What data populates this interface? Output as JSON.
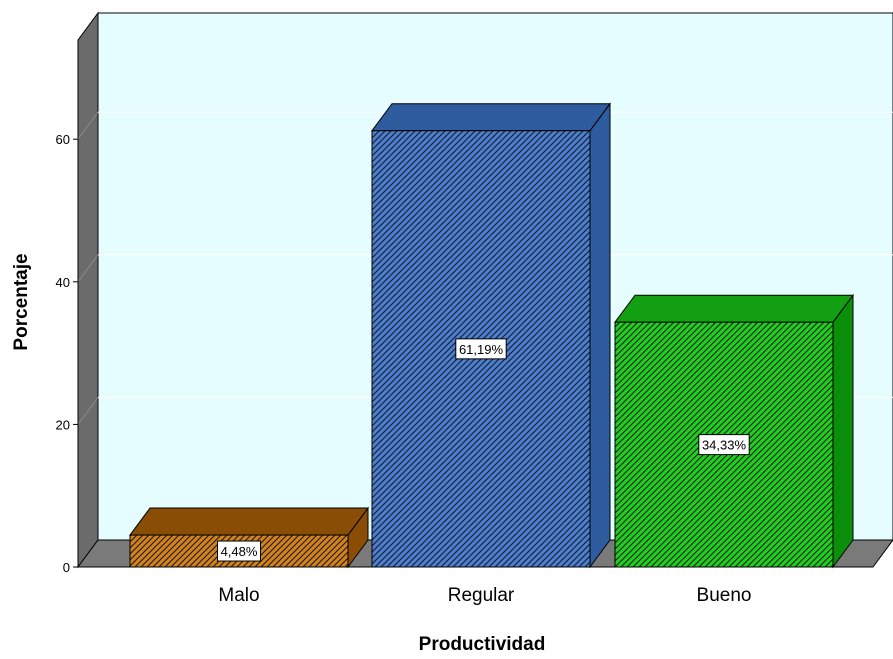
{
  "chart_data": {
    "type": "bar",
    "categories": [
      "Malo",
      "Regular",
      "Bueno"
    ],
    "values": [
      4.48,
      61.19,
      34.33
    ],
    "data_labels": [
      "4,48%",
      "61,19%",
      "34,33%"
    ],
    "xlabel": "Productividad",
    "ylabel": "Porcentaje",
    "ylim": [
      0,
      77
    ],
    "yticks": [
      0,
      20,
      40,
      60
    ],
    "grid": true,
    "legend": "none",
    "style": "3d-bars-hatched",
    "colors": {
      "bars": [
        "#d4821c",
        "#4a7fd4",
        "#1fd11f"
      ],
      "bar_tops": [
        "#8a4d05",
        "#2e5c9e",
        "#12a012"
      ],
      "bar_sides": [
        "#8a4d05",
        "#2e5c9e",
        "#0b8f0b"
      ],
      "plot_background": "#e6fdff",
      "grid": "#ffffff",
      "walls": "#6b6b6b"
    }
  }
}
